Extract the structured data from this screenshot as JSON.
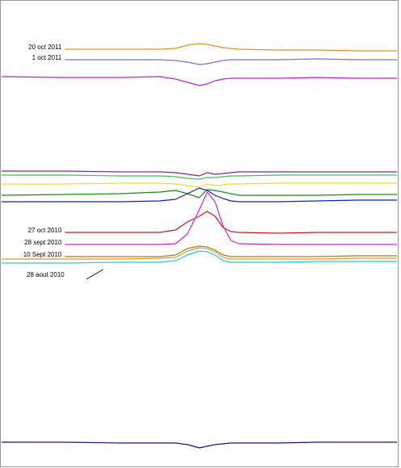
{
  "chart_data": {
    "type": "line",
    "xlim": [
      0,
      100
    ],
    "ylim": [
      0,
      580
    ],
    "x": [
      0,
      16,
      30,
      40,
      44,
      47,
      50,
      52,
      54,
      56,
      58,
      60,
      70,
      80,
      90,
      100
    ],
    "series": [
      {
        "name": "20 oct 2011",
        "color": "#e8901c",
        "values": [
          null,
          519,
          519,
          519,
          520,
          524,
          526,
          525,
          523,
          521,
          520,
          519,
          518,
          518,
          517,
          517
        ]
      },
      {
        "name": "1 oct 2011",
        "color": "#7a72d8",
        "values": [
          null,
          506,
          506,
          506,
          505,
          503,
          500,
          501,
          503,
          505,
          506,
          506,
          506,
          507,
          506,
          506
        ]
      },
      {
        "color": "#c020c8",
        "values": [
          485,
          484,
          484,
          485,
          482,
          478,
          474,
          476,
          480,
          482,
          483,
          483,
          483,
          484,
          483,
          483
        ]
      },
      {
        "color": "#7a2a8a",
        "values": [
          368,
          368,
          367,
          367,
          366,
          364,
          362,
          366,
          364,
          365,
          366,
          367,
          367,
          367,
          367,
          367
        ]
      },
      {
        "color": "#40c060",
        "values": [
          363,
          363,
          362,
          362,
          361,
          359,
          358,
          360,
          360,
          361,
          362,
          362,
          363,
          363,
          363,
          363
        ]
      },
      {
        "color": "#e8e020",
        "values": [
          352,
          352,
          353,
          353,
          352,
          350,
          348,
          352,
          350,
          351,
          352,
          352,
          353,
          353,
          353,
          353
        ]
      },
      {
        "color": "#109010",
        "values": [
          338,
          339,
          340,
          342,
          344,
          340,
          335,
          345,
          344,
          342,
          340,
          338,
          338,
          338,
          339,
          339
        ]
      },
      {
        "color": "#1020c0",
        "values": [
          330,
          330,
          330,
          331,
          333,
          340,
          347,
          344,
          338,
          334,
          331,
          330,
          330,
          331,
          332,
          332
        ]
      },
      {
        "name": "27 oct 2010",
        "color": "#d01818",
        "values": [
          null,
          292,
          292,
          292,
          295,
          305,
          312,
          318,
          312,
          298,
          293,
          292,
          291,
          292,
          292,
          292
        ]
      },
      {
        "name": "28 sept 2010",
        "color": "#d020d8",
        "values": [
          null,
          277,
          277,
          277,
          278,
          290,
          320,
          342,
          330,
          300,
          282,
          278,
          277,
          277,
          277,
          277
        ]
      },
      {
        "name": "10 Sept 2010",
        "color": "#8a8a20",
        "values": [
          null,
          262,
          262,
          262,
          264,
          272,
          275,
          274,
          270,
          264,
          262,
          262,
          262,
          262,
          263,
          263
        ]
      },
      {
        "color": "#f09030",
        "values": [
          259,
          259,
          259,
          260,
          261,
          269,
          273,
          272,
          268,
          261,
          259,
          259,
          259,
          259,
          260,
          260
        ]
      },
      {
        "name": "28 aout 2010",
        "color": "#20c8e0",
        "values": [
          254,
          254,
          255,
          255,
          257,
          264,
          269,
          268,
          264,
          257,
          255,
          255,
          255,
          256,
          256,
          256
        ]
      },
      {
        "color": "#101880",
        "values": [
          32,
          32,
          31,
          31,
          31,
          29,
          25,
          27,
          29,
          30,
          31,
          31,
          31,
          32,
          32,
          32
        ]
      }
    ]
  }
}
